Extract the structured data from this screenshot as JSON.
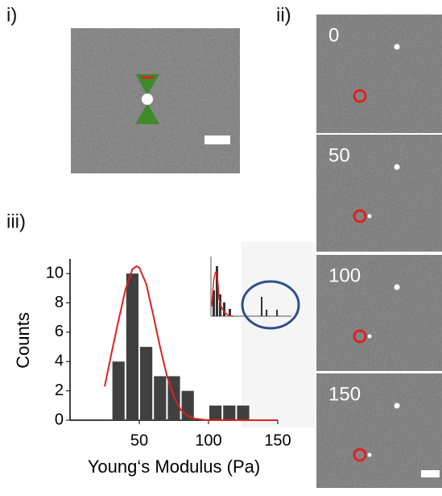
{
  "panels": {
    "i": "i)",
    "ii": "ii)",
    "iii": "iii)"
  },
  "frames": [
    "0",
    "50",
    "100",
    "150"
  ],
  "chart_data": {
    "type": "histogram",
    "xlabel": "Young‘s Modulus (Pa)",
    "ylabel": "Counts",
    "bins": [
      30,
      40,
      50,
      60,
      70,
      80,
      90,
      100,
      110,
      120,
      130
    ],
    "values": [
      4,
      10,
      5,
      3,
      3,
      2,
      0,
      1,
      1,
      1
    ],
    "color": "#404040",
    "fit": {
      "color": "#e02020",
      "x": [
        25,
        30,
        35,
        40,
        45,
        48,
        50,
        55,
        60,
        65,
        70,
        75,
        80,
        85,
        90,
        100,
        150
      ],
      "y": [
        2.3,
        4.6,
        6.8,
        8.9,
        10.3,
        10.5,
        10.4,
        9.3,
        7.2,
        5.0,
        3.0,
        1.6,
        0.7,
        0.3,
        0.1,
        0,
        0
      ]
    },
    "xlim": [
      0,
      150
    ],
    "ylim": [
      0,
      11
    ],
    "xticks": [
      50,
      100,
      150
    ],
    "yticks": [
      0,
      2,
      4,
      6,
      8,
      10
    ]
  }
}
